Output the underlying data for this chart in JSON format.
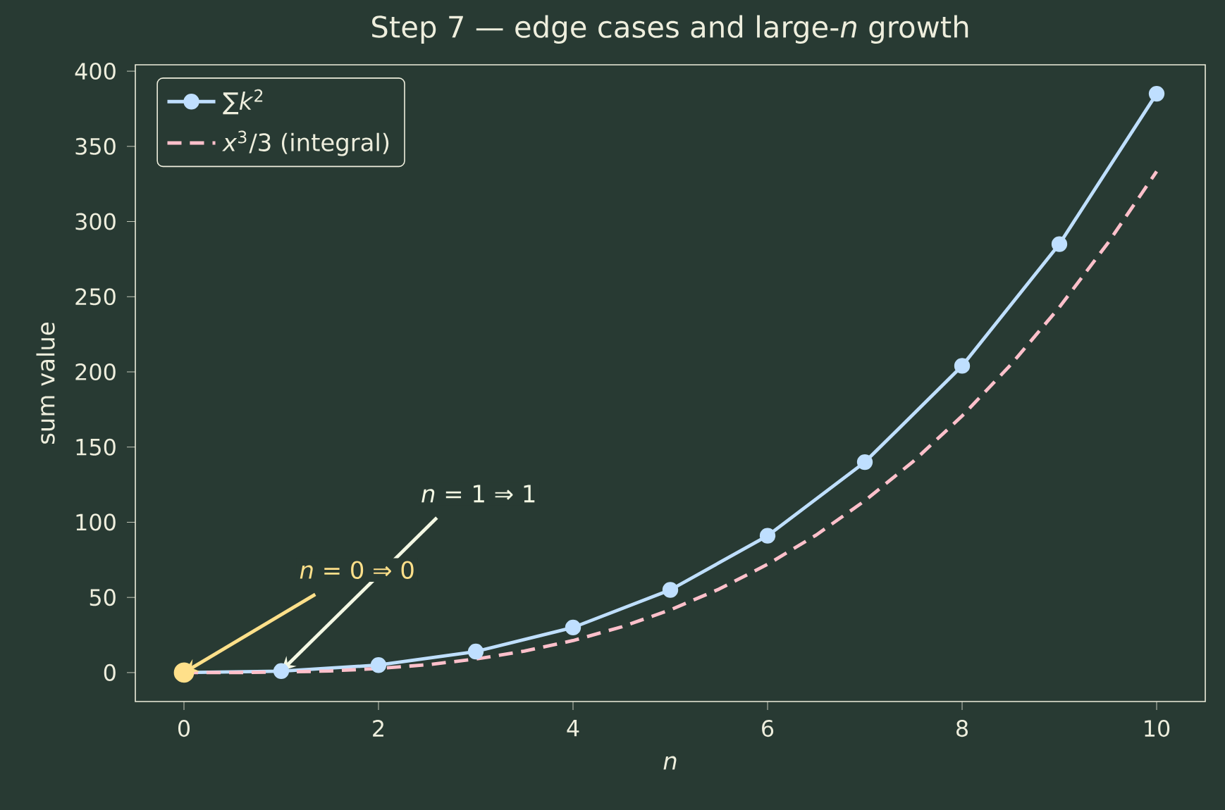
{
  "chart_data": {
    "type": "line",
    "title": "Step 7 — edge cases and large-*n* growth",
    "xlabel": "*n*",
    "ylabel": "sum value",
    "series": [
      {
        "name": "∑*k*$^{2}$",
        "color": "#bfdfff",
        "marker": "circle",
        "line_style": "solid",
        "x": [
          0,
          1,
          2,
          3,
          4,
          5,
          6,
          7,
          8,
          9,
          10
        ],
        "values": [
          0,
          1,
          5,
          14,
          30,
          55,
          91,
          140,
          204,
          285,
          385
        ]
      },
      {
        "name": "*x*$^{3}$/3 (integral)",
        "color": "#ffc0cb",
        "marker": "none",
        "line_style": "dashed",
        "x": [
          0,
          0.5,
          1,
          1.5,
          2,
          2.5,
          3,
          3.5,
          4,
          4.5,
          5,
          5.5,
          6,
          6.5,
          7,
          7.5,
          8,
          8.5,
          9,
          9.5,
          10
        ],
        "values": [
          0,
          0,
          0.3,
          1.1,
          2.7,
          5.2,
          9,
          14.3,
          21.3,
          30.4,
          41.7,
          55.5,
          72,
          91.5,
          114.3,
          140.6,
          170.7,
          204.7,
          243,
          285.8,
          333.3
        ]
      },
      {
        "type": "scatter",
        "color": "#ffe08a",
        "marker": "circle",
        "x": [
          0
        ],
        "values": [
          0
        ]
      }
    ],
    "annotations": [
      {
        "text": "*n* = 0 ⇒ 0",
        "x": 0,
        "y": 0
      },
      {
        "text": "*n* = 1 ⇒ 1",
        "x": 1,
        "y": 1
      }
    ],
    "xlim": [
      -0.5,
      10.5
    ],
    "xticks": [
      0,
      2,
      4,
      6,
      8,
      10
    ],
    "ylim": [
      -19.25,
      404.25
    ],
    "yticks": [
      0,
      50,
      100,
      150,
      200,
      250,
      300,
      350,
      400
    ],
    "legend": "top left"
  }
}
